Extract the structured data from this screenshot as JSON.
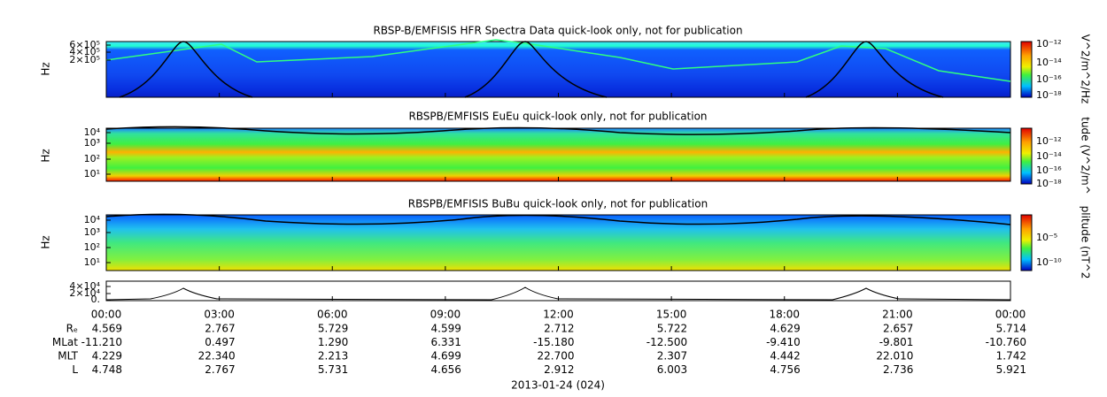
{
  "panels": [
    {
      "title": "RBSP-B/EMFISIS  HFR Spectra Data quick-look only, not for publication",
      "ylabel": "Hz",
      "yticks": [
        "6×10⁵",
        "4×10⁵",
        "2×10⁵"
      ],
      "colorbar_label": "V^2/m^2/Hz",
      "colorbar_ticks": [
        "10⁻¹²",
        "10⁻¹⁴",
        "10⁻¹⁶",
        "10⁻¹⁸"
      ]
    },
    {
      "title": "RBSPB/EMFISIS  EuEu quick-look only, not for publication",
      "ylabel": "Hz",
      "yticks": [
        "10⁴",
        "10³",
        "10²",
        "10¹"
      ],
      "colorbar_label": "tude (V^2/m^",
      "colorbar_ticks": [
        "10⁻¹²",
        "10⁻¹⁴",
        "10⁻¹⁶",
        "10⁻¹⁸"
      ]
    },
    {
      "title": "RBSPB/EMFISIS  BuBu quick-look only, not for publication",
      "ylabel": "Hz",
      "yticks": [
        "10⁴",
        "10³",
        "10²",
        "10¹"
      ],
      "colorbar_label": "plitude (nT^2",
      "colorbar_ticks": [
        "10⁻⁵",
        "10⁻¹⁰"
      ]
    },
    {
      "yticks": [
        "4×10⁴",
        "2×10⁴",
        "0."
      ]
    }
  ],
  "x_ticks": [
    "00:00",
    "03:00",
    "06:00",
    "09:00",
    "12:00",
    "15:00",
    "18:00",
    "21:00",
    "00:00"
  ],
  "ephemeris": [
    {
      "label": "Rₑ",
      "values": [
        "4.569",
        "2.767",
        "5.729",
        "4.599",
        "2.712",
        "5.722",
        "4.629",
        "2.657",
        "5.714"
      ]
    },
    {
      "label": "MLat",
      "values": [
        "-11.210",
        "0.497",
        "1.290",
        "6.331",
        "-15.180",
        "-12.500",
        "-9.410",
        "-9.801",
        "-10.760"
      ]
    },
    {
      "label": "MLT",
      "values": [
        "4.229",
        "22.340",
        "2.213",
        "4.699",
        "22.700",
        "2.307",
        "4.442",
        "22.010",
        "1.742"
      ]
    },
    {
      "label": "L",
      "values": [
        "4.748",
        "2.767",
        "5.731",
        "4.656",
        "2.912",
        "6.003",
        "4.756",
        "2.736",
        "5.921"
      ]
    }
  ],
  "date": "2013-01-24 (024)"
}
